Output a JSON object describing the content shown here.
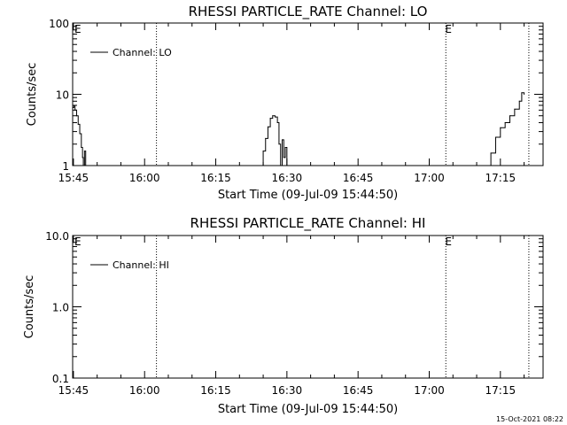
{
  "footer": {
    "timestamp": "15-Oct-2021 08:22"
  },
  "chart_data": [
    {
      "type": "line",
      "title": "RHESSI PARTICLE_RATE Channel: LO",
      "xlabel": "Start Time (09-Jul-09 15:44:50)",
      "ylabel": "Counts/sec",
      "yscale": "log",
      "ylim": [
        1,
        100
      ],
      "xlim": [
        "15:44:50",
        "17:24:00"
      ],
      "xtick_labels": [
        "15:45",
        "16:00",
        "16:15",
        "16:30",
        "16:45",
        "17:00",
        "17:15"
      ],
      "ytick_labels": [
        "1",
        "10",
        "100"
      ],
      "vertical_markers": [
        {
          "time": "16:02:30",
          "label": ""
        },
        {
          "time": "17:03:30",
          "label": "E"
        },
        {
          "time": "17:21:00",
          "label": ""
        }
      ],
      "start_marker_label": "E",
      "legend": {
        "label": "Channel: LO",
        "position": "top-left"
      },
      "series": [
        {
          "name": "Channel: LO",
          "points": [
            [
              "15:44:50",
              6.5
            ],
            [
              "15:45:05",
              7.0
            ],
            [
              "15:45:20",
              6.0
            ],
            [
              "15:45:40",
              5.0
            ],
            [
              "15:46:00",
              3.8
            ],
            [
              "15:46:20",
              2.8
            ],
            [
              "15:46:40",
              1.8
            ],
            [
              "15:46:55",
              1.3
            ],
            [
              "15:47:05",
              1.0
            ],
            [
              "15:47:20",
              1.6
            ],
            [
              "15:47:35",
              1.0
            ],
            [
              "16:24:30",
              1.0
            ],
            [
              "16:25:00",
              1.6
            ],
            [
              "16:25:30",
              2.4
            ],
            [
              "16:26:00",
              3.5
            ],
            [
              "16:26:30",
              4.6
            ],
            [
              "16:27:00",
              5.0
            ],
            [
              "16:27:30",
              4.8
            ],
            [
              "16:28:00",
              4.0
            ],
            [
              "16:28:20",
              2.0
            ],
            [
              "16:28:40",
              1.0
            ],
            [
              "16:29:00",
              2.3
            ],
            [
              "16:29:20",
              1.3
            ],
            [
              "16:29:40",
              1.8
            ],
            [
              "16:30:00",
              1.0
            ],
            [
              "17:12:30",
              1.0
            ],
            [
              "17:13:00",
              1.5
            ],
            [
              "17:14:00",
              2.5
            ],
            [
              "17:15:00",
              3.4
            ],
            [
              "17:16:00",
              4.0
            ],
            [
              "17:17:00",
              5.0
            ],
            [
              "17:18:00",
              6.2
            ],
            [
              "17:19:00",
              8.0
            ],
            [
              "17:19:30",
              10.5
            ],
            [
              "17:20:00",
              10.0
            ]
          ]
        }
      ]
    },
    {
      "type": "line",
      "title": "RHESSI PARTICLE_RATE Channel: HI",
      "xlabel": "Start Time (09-Jul-09 15:44:50)",
      "ylabel": "Counts/sec",
      "yscale": "log",
      "ylim": [
        0.1,
        10
      ],
      "xlim": [
        "15:44:50",
        "17:24:00"
      ],
      "xtick_labels": [
        "15:45",
        "16:00",
        "16:15",
        "16:30",
        "16:45",
        "17:00",
        "17:15"
      ],
      "ytick_labels": [
        "0.1",
        "1.0",
        "10.0"
      ],
      "vertical_markers": [
        {
          "time": "16:02:30",
          "label": ""
        },
        {
          "time": "17:03:30",
          "label": "E"
        },
        {
          "time": "17:21:00",
          "label": ""
        }
      ],
      "start_marker_label": "E",
      "legend": {
        "label": "Channel: HI",
        "position": "top-left"
      },
      "series": [
        {
          "name": "Channel: HI",
          "points": []
        }
      ]
    }
  ]
}
